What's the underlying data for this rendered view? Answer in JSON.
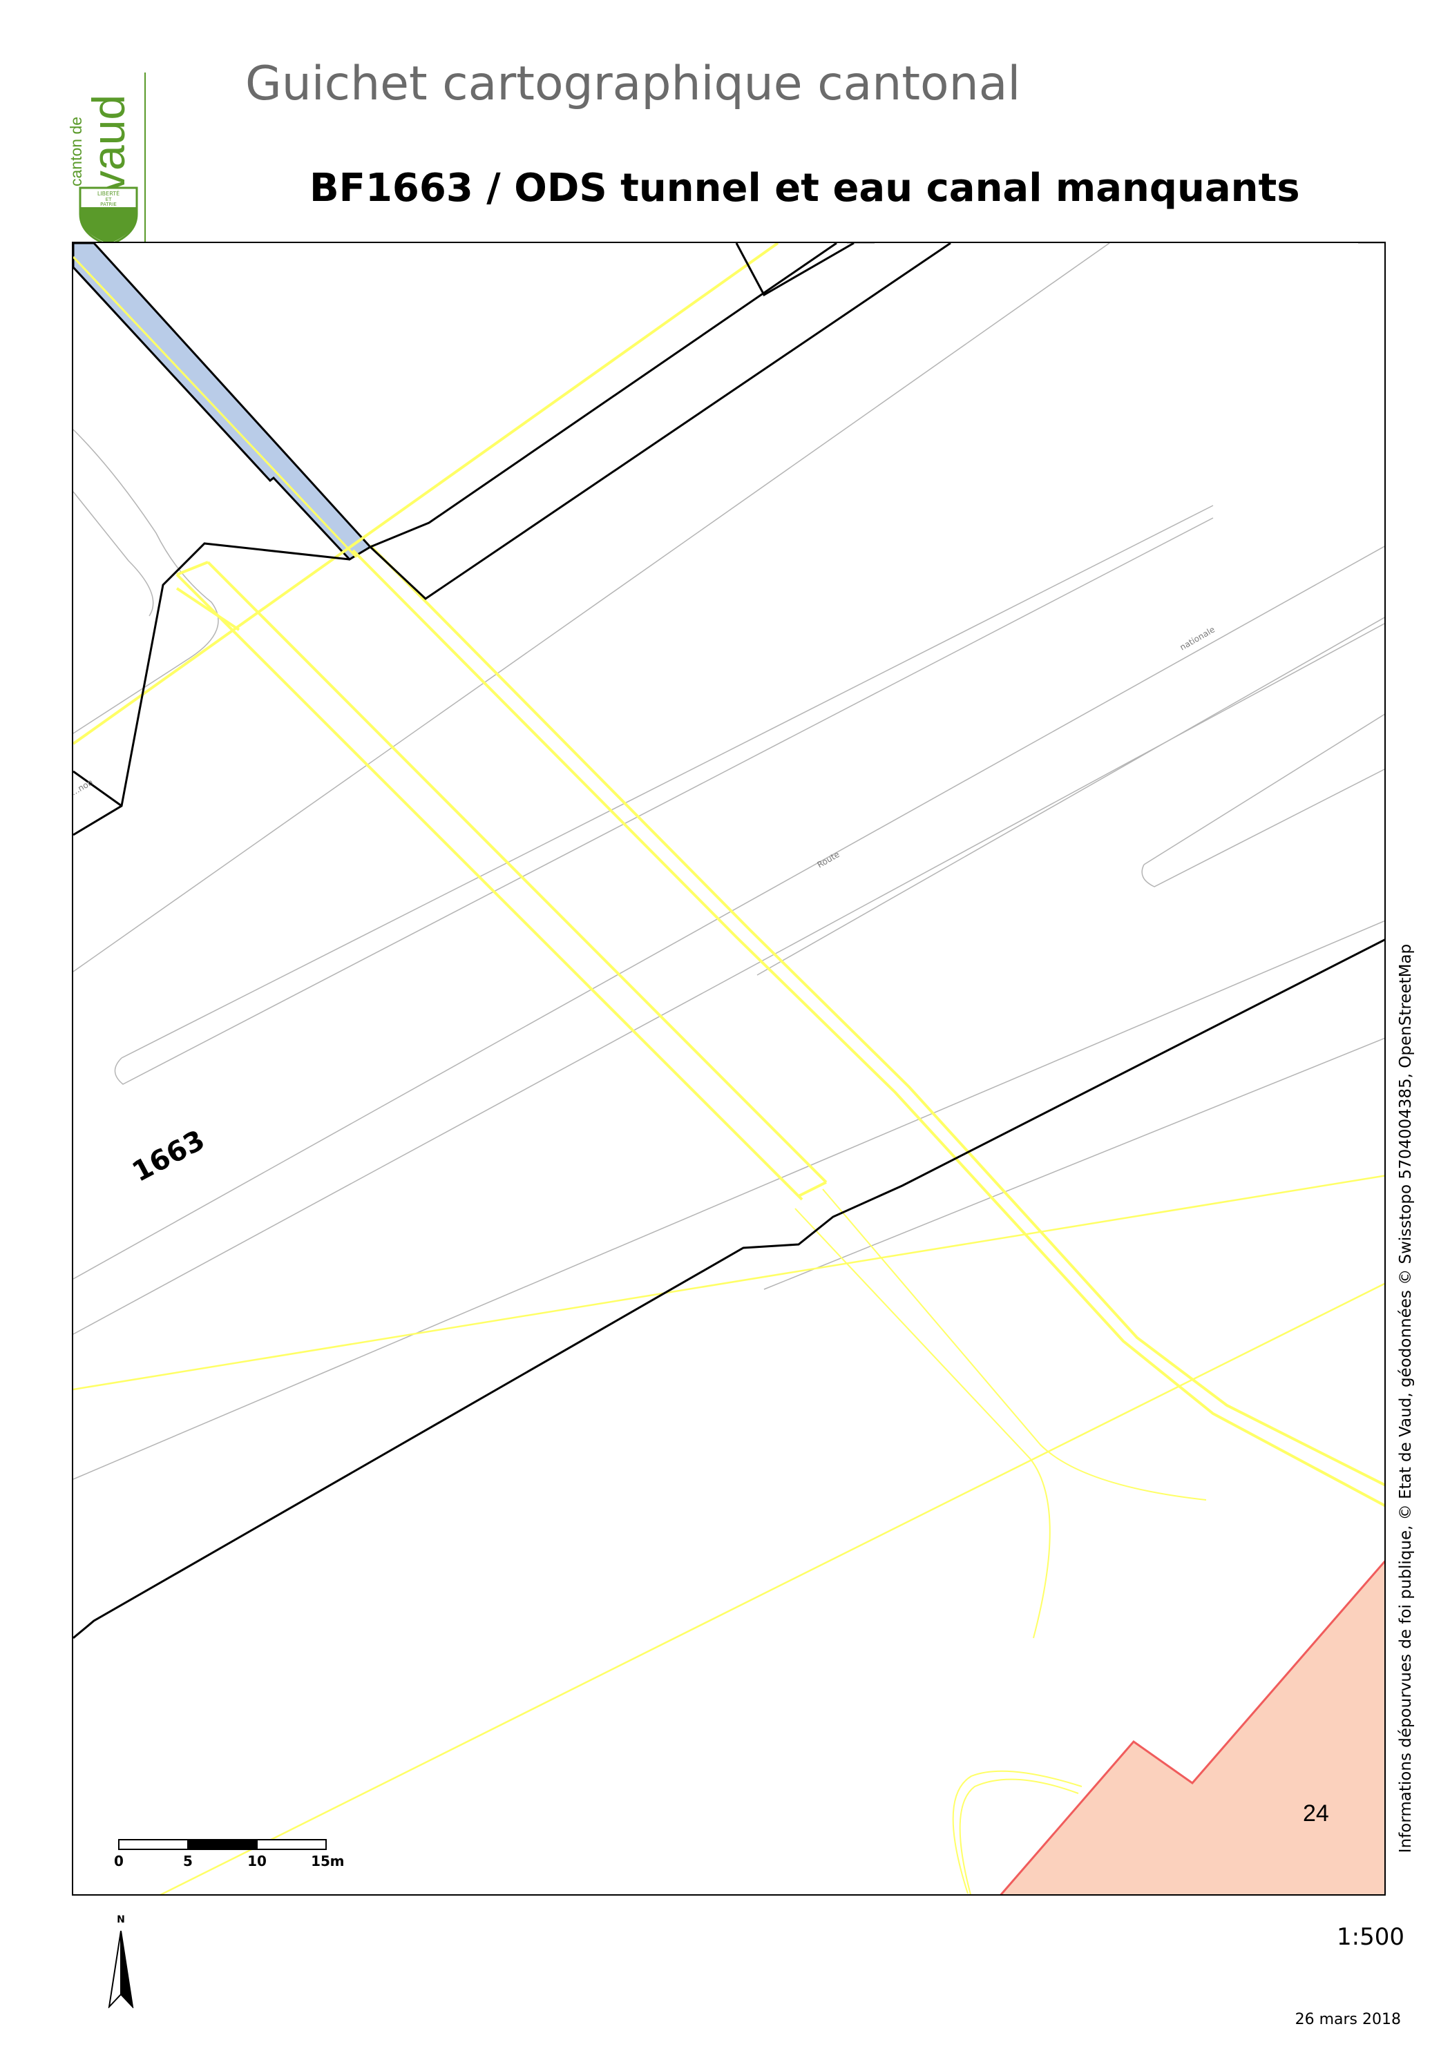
{
  "header": {
    "app_title": "Guichet cartographique cantonal",
    "map_title": "BF1663 / ODS tunnel et eau canal manquants"
  },
  "logo": {
    "line1": "canton de",
    "line2": "vaud",
    "shield_text": [
      "LIBERTÉ",
      "ET",
      "PATRIE"
    ],
    "color": "#5a9a2a"
  },
  "map": {
    "parcel_number": "1663",
    "building_number": "24",
    "road_label_1": "Route",
    "road_label_2": "nationale",
    "edge_label": "...non",
    "colors": {
      "parcel_boundary": "#000000",
      "utility_lines": "#ffff66",
      "road_lines": "#b4b4b4",
      "water": "#b9cce8",
      "building_fill": "#fbd1bd",
      "building_stroke": "#f05c5c"
    }
  },
  "scalebar": {
    "ticks": [
      "0",
      "5",
      "10",
      "15"
    ],
    "unit": "m"
  },
  "north_arrow": {
    "label": "N",
    "icon": "north-arrow-icon"
  },
  "footer": {
    "attribution": "Informations dépourvues de foi publique, © Etat de Vaud, géodonnées © Swisstopo 5704004385, OpenStreetMap",
    "scale": "1:500",
    "date": "26 mars 2018"
  }
}
